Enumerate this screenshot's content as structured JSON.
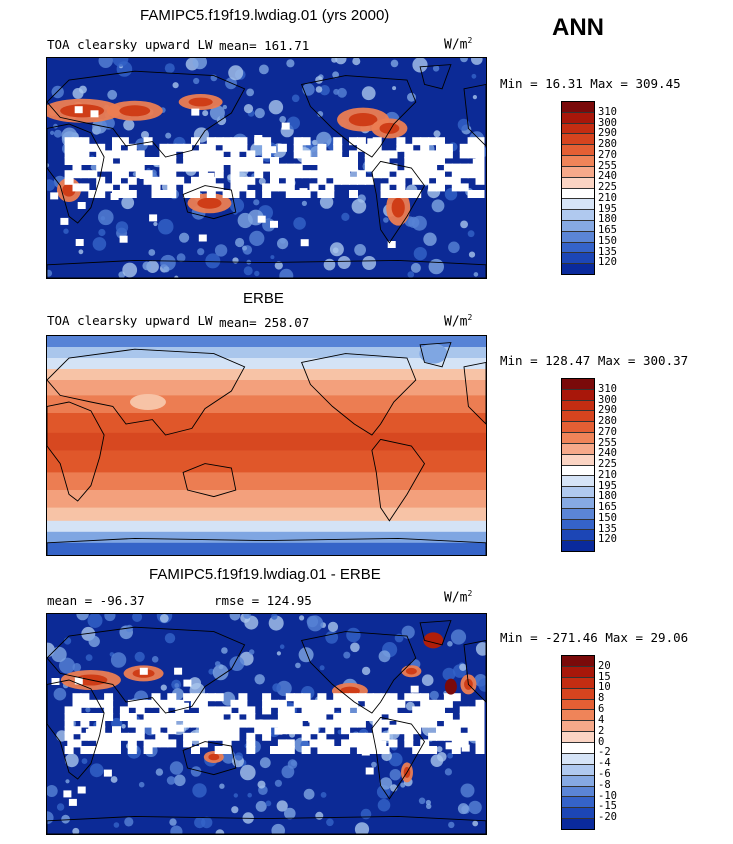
{
  "header": {
    "season": "ANN"
  },
  "colors": {
    "warm": [
      "#7a0a0a",
      "#b01e0a",
      "#cf3d17",
      "#e0572a",
      "#ec7d52",
      "#f3a07c",
      "#f7c3a6",
      "#ffffff",
      "#ffffff"
    ],
    "cool": [
      "#d4e3f6",
      "#a9c6ec",
      "#7fa6e2",
      "#5783d6",
      "#3564c8",
      "#1c45b4",
      "#0c2a96"
    ]
  },
  "panels": [
    {
      "title": "FAMIPC5.f19f19.lwdiag.01 (yrs 2000)",
      "variable": "TOA clearsky upward LW",
      "mean_text": "mean= 161.71",
      "units_base": "W/m",
      "units_exp": "2",
      "min_max": "Min =  16.31 Max = 309.45",
      "mode": "model",
      "colorbar": {
        "labels": [
          "310",
          "300",
          "290",
          "280",
          "270",
          "255",
          "240",
          "225",
          "210",
          "195",
          "180",
          "165",
          "150",
          "135",
          "120"
        ],
        "colors": [
          "#7a0a0a",
          "#a8170a",
          "#c42d12",
          "#d6441f",
          "#e45f34",
          "#ef8459",
          "#f6a98a",
          "#fbd4c3",
          "#ffffff",
          "#d6e4f7",
          "#b0c9ef",
          "#86a9e3",
          "#5b85d6",
          "#3563c9",
          "#1c46b6",
          "#0a2a9c"
        ]
      }
    },
    {
      "title": "ERBE",
      "variable": "TOA clearsky upward LW",
      "mean_text": "mean= 258.07",
      "units_base": "W/m",
      "units_exp": "2",
      "min_max": "Min = 128.47 Max = 300.37",
      "mode": "obs",
      "colorbar": {
        "labels": [
          "310",
          "300",
          "290",
          "280",
          "270",
          "255",
          "240",
          "225",
          "210",
          "195",
          "180",
          "165",
          "150",
          "135",
          "120"
        ],
        "colors": [
          "#7a0a0a",
          "#a8170a",
          "#c42d12",
          "#d6441f",
          "#e45f34",
          "#ef8459",
          "#f6a98a",
          "#fbd4c3",
          "#ffffff",
          "#d6e4f7",
          "#b0c9ef",
          "#86a9e3",
          "#5b85d6",
          "#3563c9",
          "#1c46b6",
          "#0a2a9c"
        ]
      }
    },
    {
      "title": "FAMIPC5.f19f19.lwdiag.01 - ERBE",
      "variable": "",
      "mean_text": "mean = -96.37",
      "rmse_text": "rmse = 124.95",
      "units_base": "W/m",
      "units_exp": "2",
      "min_max": "Min = -271.46 Max =  29.06",
      "mode": "diff",
      "colorbar": {
        "labels": [
          "20",
          "15",
          "10",
          "8",
          "6",
          "4",
          "2",
          "0",
          "-2",
          "-4",
          "-6",
          "-8",
          "-10",
          "-15",
          "-20"
        ],
        "colors": [
          "#7a0a0a",
          "#a8170a",
          "#c42d12",
          "#d6441f",
          "#e45f34",
          "#ef8459",
          "#f6a98a",
          "#fbd4c3",
          "#ffffff",
          "#d6e4f7",
          "#b0c9ef",
          "#86a9e3",
          "#5b85d6",
          "#3563c9",
          "#1c46b6",
          "#0a2a9c"
        ]
      }
    }
  ]
}
